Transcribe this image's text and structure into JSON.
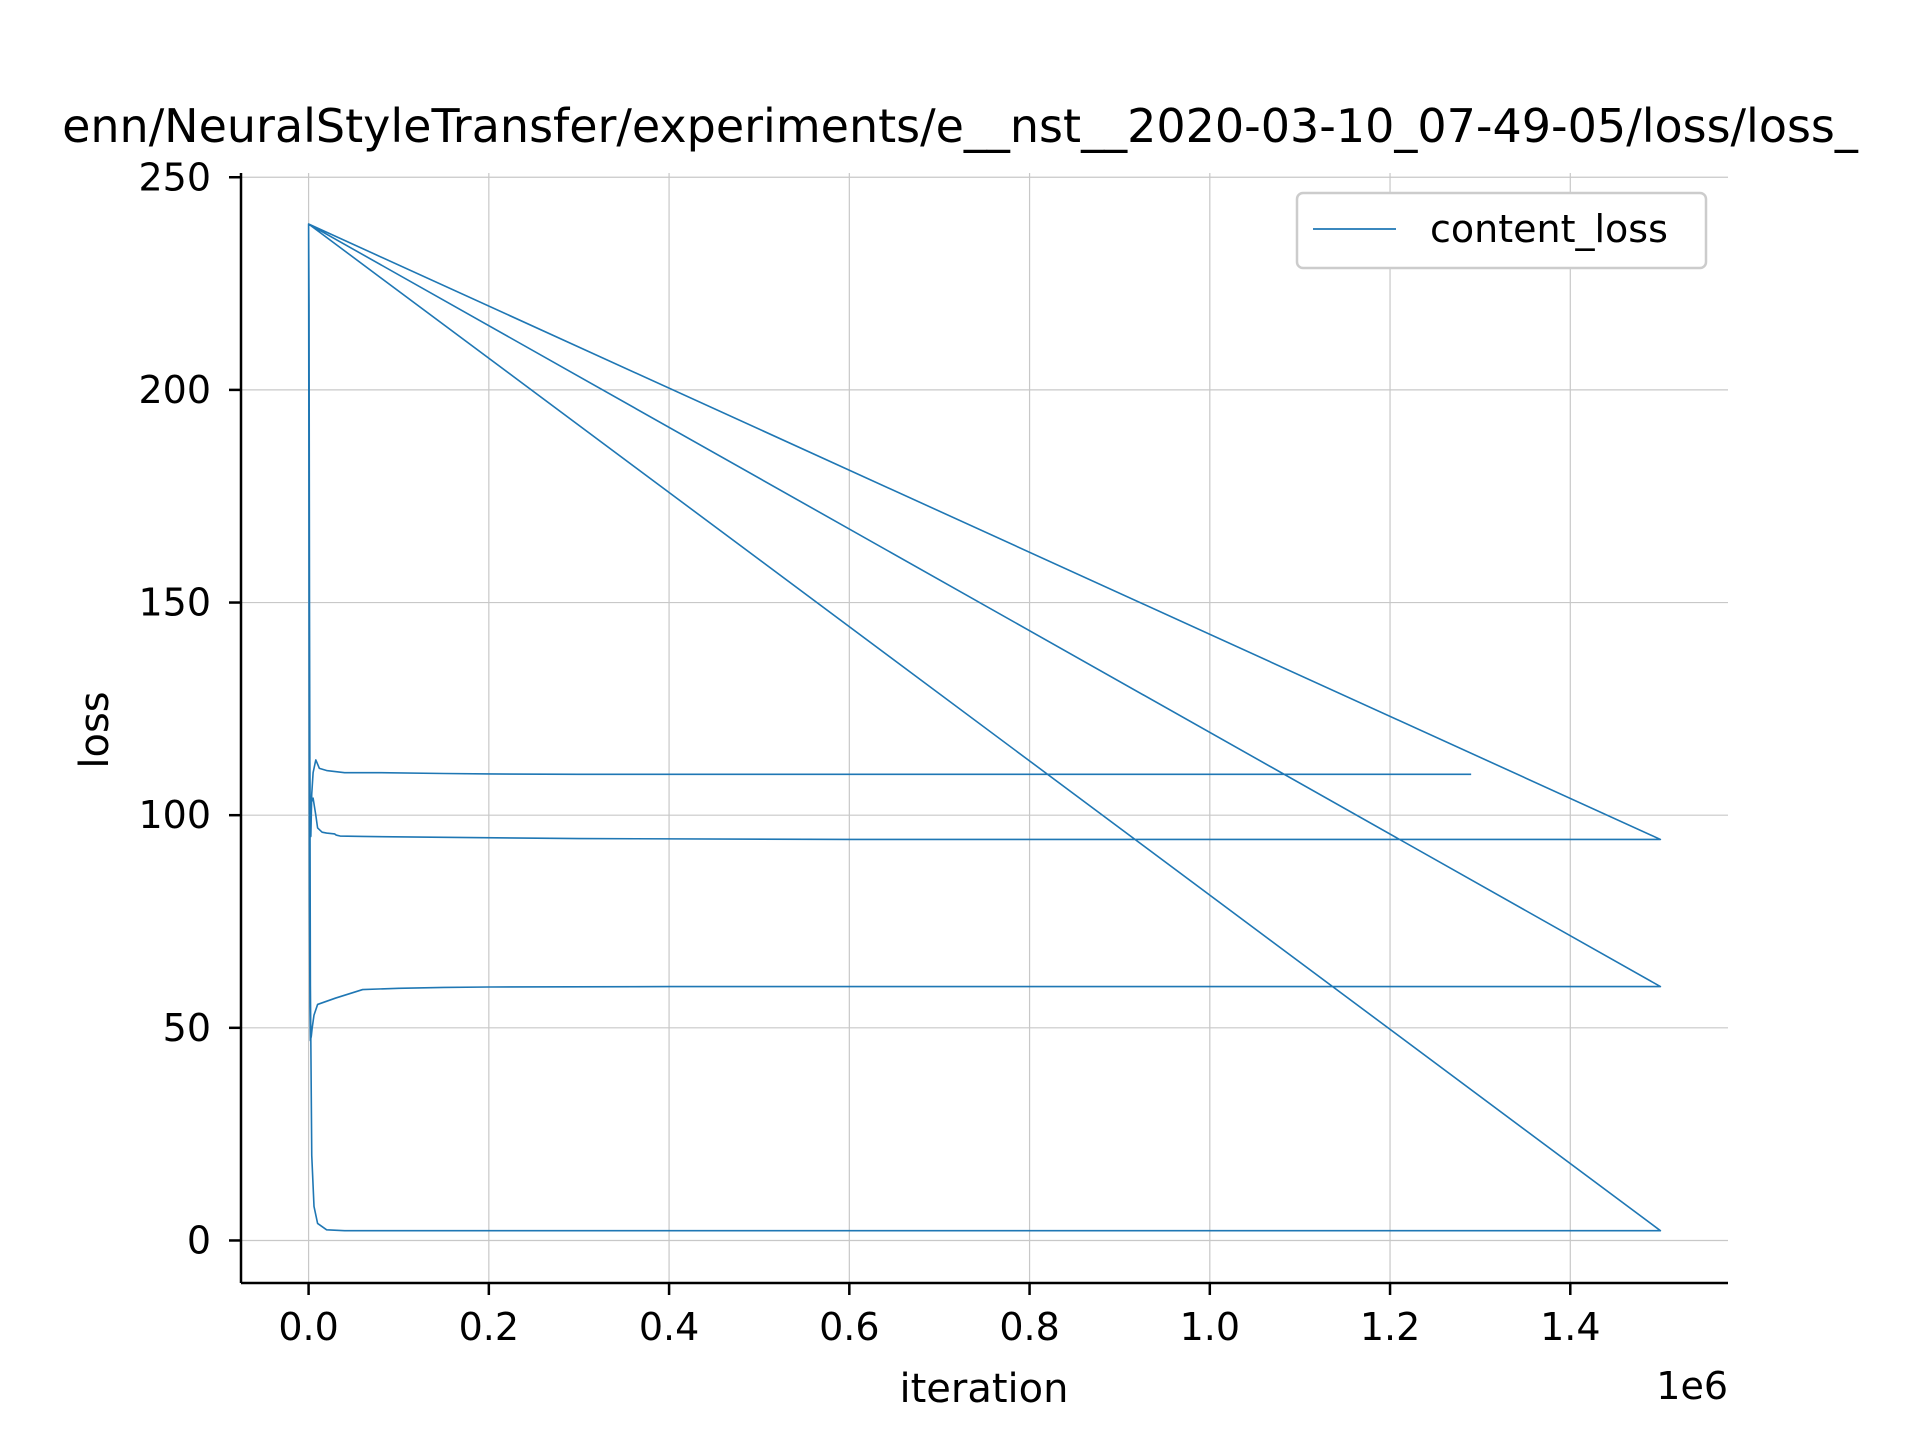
{
  "chart_data": {
    "type": "line",
    "title": "/home/glenn/NeuralStyleTransfer/experiments/e__nst__2020-03-10_07-49-05/loss/loss_content_loss.png",
    "title_visible": "enn/NeuralStyleTransfer/experiments/e__nst__2020-03-10_07-49-05/loss/loss_",
    "xlabel": "iteration",
    "ylabel": "loss",
    "x_offset_label": "1e6",
    "x_scale_multiplier": 1000000,
    "xlim": [
      -75000,
      1575000
    ],
    "ylim": [
      -10,
      251
    ],
    "x_ticks": [
      0,
      200000,
      400000,
      600000,
      800000,
      1000000,
      1200000,
      1400000
    ],
    "x_tick_labels": [
      "0.0",
      "0.2",
      "0.4",
      "0.6",
      "0.8",
      "1.0",
      "1.2",
      "1.4"
    ],
    "y_ticks": [
      0,
      50,
      100,
      150,
      200,
      250
    ],
    "y_tick_labels": [
      "0",
      "50",
      "100",
      "150",
      "200",
      "250"
    ],
    "grid": true,
    "legend_position": "top-right",
    "colors": {
      "series": "#1f77b4",
      "grid": "#c8c8c8",
      "axis": "#000000"
    },
    "series": [
      {
        "name": "content_loss",
        "x": [
          0,
          500,
          1000,
          2000,
          3500,
          6000,
          10000,
          20000,
          40000,
          80000,
          150000,
          300000,
          600000,
          1000000,
          1500000,
          0,
          300,
          600,
          1000,
          1500,
          2000,
          3000,
          4000,
          6000,
          10000,
          30000,
          60000,
          100000,
          150000,
          200000,
          400000,
          800000,
          1500000,
          0,
          500,
          1000,
          1500,
          2000,
          3000,
          5000,
          8000,
          10000,
          15000,
          20000,
          29000,
          30000,
          31000,
          35000,
          60000,
          150000,
          300000,
          600000,
          1000000,
          1500000,
          0,
          600,
          1200,
          1800,
          2500,
          3500,
          5000,
          8000,
          12000,
          20000,
          40000,
          80000,
          150000,
          200000,
          300000,
          600000,
          1000000,
          1290000
        ],
        "y": [
          239,
          220,
          150,
          60,
          20,
          8,
          4,
          2.5,
          2.3,
          2.3,
          2.3,
          2.3,
          2.3,
          2.3,
          2.3,
          239,
          190,
          130,
          80,
          55,
          47,
          48,
          50,
          53,
          55.5,
          57,
          59,
          59.3,
          59.5,
          59.6,
          59.7,
          59.7,
          59.7,
          239,
          180,
          140,
          105,
          100,
          103,
          104,
          100,
          97,
          96,
          95.8,
          95.6,
          95.4,
          95.3,
          95.1,
          95,
          94.8,
          94.5,
          94.3,
          94.3,
          94.3,
          239,
          170,
          120,
          100,
          95,
          105,
          110,
          113,
          111,
          110.5,
          110,
          110,
          109.8,
          109.7,
          109.6,
          109.6,
          109.6,
          109.6
        ]
      }
    ]
  }
}
